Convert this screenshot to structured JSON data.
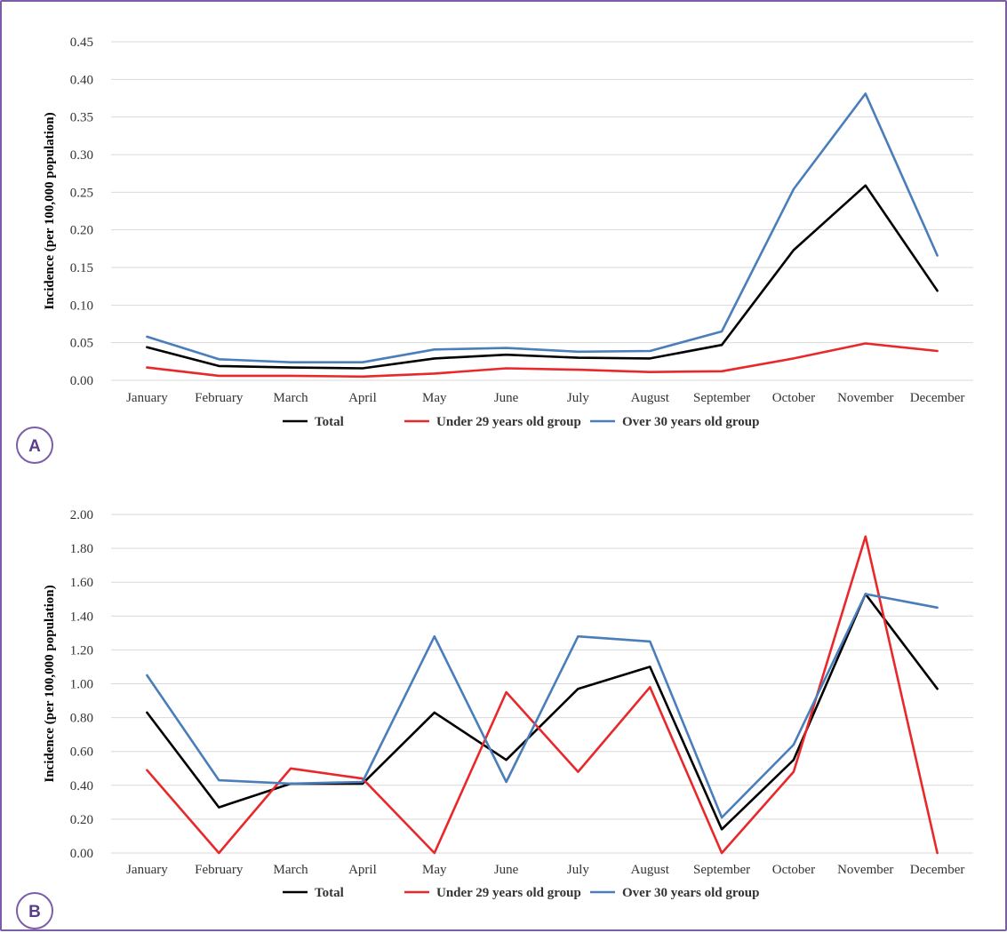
{
  "colors": {
    "frame": "#7b5ea7",
    "badge_text": "#5a3f8c",
    "grid": "#d9d9d9"
  },
  "chart_data": [
    {
      "panel_label": "A",
      "type": "line",
      "ylabel": "Incidence (per 100,000 population)",
      "ylim": [
        0,
        0.45
      ],
      "yticks": [
        "0.00",
        "0.05",
        "0.10",
        "0.15",
        "0.20",
        "0.25",
        "0.30",
        "0.35",
        "0.40",
        "0.45"
      ],
      "categories": [
        "January",
        "February",
        "March",
        "April",
        "May",
        "June",
        "July",
        "August",
        "September",
        "October",
        "November",
        "December"
      ],
      "grid": true,
      "legend_position": "bottom",
      "series": [
        {
          "name": "Total",
          "color": "#000000",
          "values": [
            0.044,
            0.019,
            0.017,
            0.016,
            0.029,
            0.034,
            0.03,
            0.029,
            0.047,
            0.173,
            0.259,
            0.119
          ]
        },
        {
          "name": "Under 29 years old group",
          "color": "#e8282b",
          "values": [
            0.017,
            0.006,
            0.006,
            0.005,
            0.009,
            0.016,
            0.014,
            0.011,
            0.012,
            0.029,
            0.049,
            0.039
          ]
        },
        {
          "name": "Over 30 years old group",
          "color": "#4a7ebb",
          "values": [
            0.058,
            0.028,
            0.024,
            0.024,
            0.041,
            0.043,
            0.038,
            0.039,
            0.065,
            0.254,
            0.381,
            0.166
          ]
        }
      ]
    },
    {
      "panel_label": "B",
      "type": "line",
      "ylabel": "Incidence (per 100,000 population)",
      "ylim": [
        0,
        2.0
      ],
      "yticks": [
        "0.00",
        "0.20",
        "0.40",
        "0.60",
        "0.80",
        "1.00",
        "1.20",
        "1.40",
        "1.60",
        "1.80",
        "2.00"
      ],
      "categories": [
        "January",
        "February",
        "March",
        "April",
        "May",
        "June",
        "July",
        "August",
        "September",
        "October",
        "November",
        "December"
      ],
      "grid": true,
      "legend_position": "bottom",
      "series": [
        {
          "name": "Total",
          "color": "#000000",
          "values": [
            0.83,
            0.27,
            0.41,
            0.41,
            0.83,
            0.55,
            0.97,
            1.1,
            0.14,
            0.55,
            1.53,
            0.97
          ]
        },
        {
          "name": "Under 29 years old group",
          "color": "#e8282b",
          "values": [
            0.49,
            0.0,
            0.5,
            0.44,
            0.0,
            0.95,
            0.48,
            0.98,
            0.0,
            0.48,
            1.87,
            0.0
          ]
        },
        {
          "name": "Over 30 years old group",
          "color": "#4a7ebb",
          "values": [
            1.05,
            0.43,
            0.41,
            0.42,
            1.28,
            0.42,
            1.28,
            1.25,
            0.21,
            0.64,
            1.53,
            1.45
          ]
        }
      ]
    }
  ]
}
